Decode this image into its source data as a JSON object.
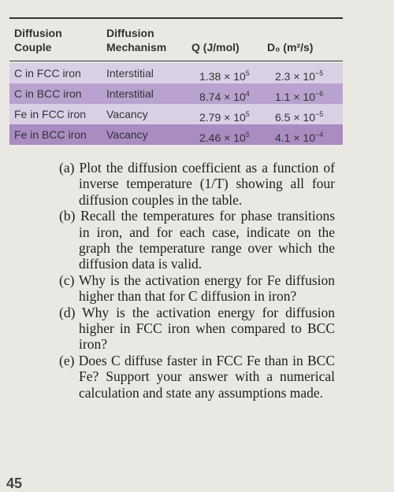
{
  "table": {
    "headers": [
      [
        "Diffusion",
        "Couple"
      ],
      [
        "Diffusion",
        "Mechanism"
      ],
      [
        "Q (J/mol)"
      ],
      [
        "D₀ (m²/s)"
      ]
    ],
    "rows": [
      [
        "C in FCC iron",
        "Interstitial",
        {
          "base": "1.38 × 10",
          "exp": "5"
        },
        {
          "base": "2.3 × 10",
          "exp": "−5"
        }
      ],
      [
        "C in BCC iron",
        "Interstitial",
        {
          "base": "8.74 × 10",
          "exp": "4"
        },
        {
          "base": "1.1 × 10",
          "exp": "−6"
        }
      ],
      [
        "Fe in FCC iron",
        "Vacancy",
        {
          "base": "2.79 × 10",
          "exp": "5"
        },
        {
          "base": "6.5 × 10",
          "exp": "−5"
        }
      ],
      [
        "Fe in BCC iron",
        "Vacancy",
        {
          "base": "2.46 × 10",
          "exp": "5"
        },
        {
          "base": "4.1 × 10",
          "exp": "−4"
        }
      ]
    ]
  },
  "questions": [
    {
      "label": "(a)",
      "text": "Plot the diffusion coefficient as a function of inverse temperature (1/T) showing all four diffusion couples in the table."
    },
    {
      "label": "(b)",
      "text": "Recall the temperatures for phase transitions in iron, and for each case, indicate on the graph the temperature range over which the diffusion data is valid."
    },
    {
      "label": "(c)",
      "text": "Why is the activation energy for Fe diffusion higher than that for C diffusion in iron?"
    },
    {
      "label": "(d)",
      "text": "Why is the activation energy for diffusion higher in FCC iron when compared to BCC iron?"
    },
    {
      "label": "(e)",
      "text": "Does C diffuse faster in FCC Fe than in BCC Fe? Support your answer with a numerical calculation and state any assumptions made."
    }
  ],
  "footer": {
    "number": "45"
  }
}
